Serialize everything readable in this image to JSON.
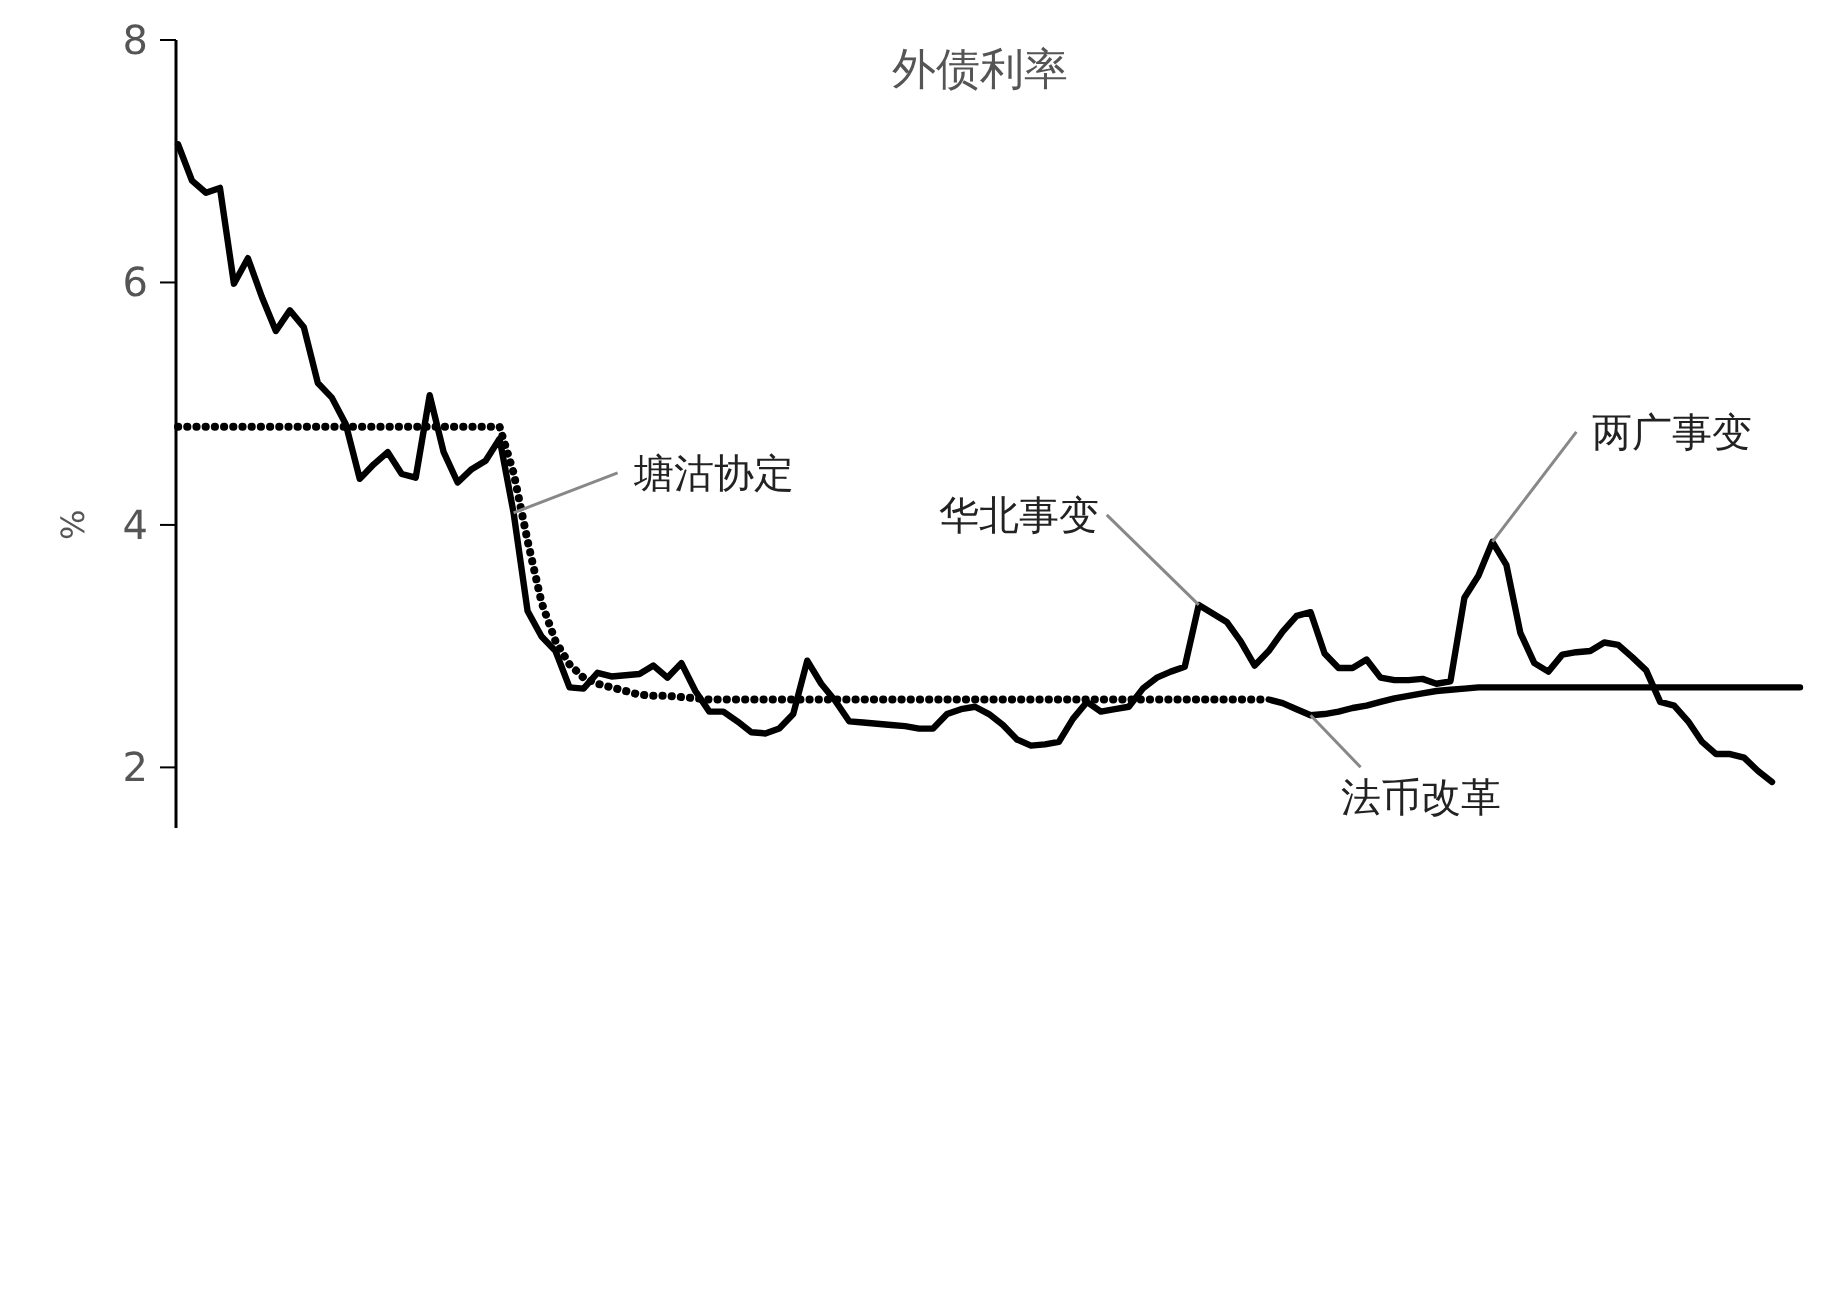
{
  "chart_data": {
    "type": "line",
    "title": "外债利率",
    "ylabel": "%",
    "categories": [
      null,
      null,
      null,
      null,
      null,
      null,
      null,
      null,
      null,
      null,
      null,
      null,
      null,
      null,
      null,
      null,
      null,
      null,
      null,
      null,
      null,
      null,
      null,
      null,
      null,
      null,
      null,
      null,
      null,
      null,
      null,
      null,
      null,
      null,
      null,
      null,
      null,
      null,
      null,
      null,
      null,
      null,
      null,
      null,
      null,
      null,
      null,
      null,
      null,
      null,
      null,
      null,
      null,
      null,
      null,
      null,
      null,
      null,
      null,
      null,
      null,
      null,
      null,
      null,
      null,
      null,
      null,
      null,
      null,
      null,
      null,
      null,
      null,
      null,
      null,
      null,
      null,
      null,
      null,
      null,
      null,
      null,
      null,
      null,
      null,
      null,
      null,
      null,
      null,
      null,
      null,
      null,
      null,
      null,
      null,
      null,
      null,
      null,
      null,
      null,
      null,
      null,
      null,
      null,
      null,
      null,
      null,
      null,
      null,
      null,
      null,
      null,
      null,
      null,
      null,
      null,
      null
    ],
    "ylim": [
      1.5,
      8
    ],
    "yticks": [
      2,
      4,
      6,
      8
    ],
    "tick_labels": "y",
    "grid": false,
    "series": [
      {
        "color": "#000000",
        "line_style": "solid",
        "values": [
          7.14,
          6.84,
          6.74,
          6.78,
          5.99,
          6.2,
          5.88,
          5.6,
          5.77,
          5.63,
          5.17,
          5.05,
          4.83,
          4.38,
          4.5,
          4.6,
          4.42,
          4.39,
          5.07,
          4.6,
          4.35,
          4.46,
          4.53,
          4.71,
          4.1,
          3.29,
          3.08,
          2.96,
          2.66,
          2.65,
          2.78,
          2.75,
          2.76,
          2.77,
          2.84,
          2.74,
          2.86,
          2.63,
          2.46,
          2.46,
          2.38,
          2.29,
          2.28,
          2.32,
          2.44,
          2.88,
          2.69,
          2.55,
          2.38,
          2.37,
          2.36,
          2.35,
          2.34,
          2.32,
          2.32,
          2.44,
          2.48,
          2.5,
          2.44,
          2.35,
          2.23,
          2.18,
          2.19,
          2.21,
          2.4,
          2.54,
          2.46,
          2.48,
          2.5,
          2.65,
          2.74,
          2.79,
          2.83,
          3.34,
          3.27,
          3.2,
          3.04,
          2.84,
          2.96,
          3.12,
          3.25,
          3.28,
          2.94,
          2.82,
          2.82,
          2.89,
          2.74,
          2.72,
          2.72,
          2.73,
          2.69,
          2.71,
          3.4,
          3.58,
          3.86,
          3.67,
          3.11,
          2.86,
          2.79,
          2.93,
          2.95,
          2.96,
          3.03,
          3.01,
          2.91,
          2.8,
          2.54,
          2.51,
          2.38,
          2.21,
          2.11,
          2.11,
          2.08,
          1.97,
          1.88,
          null,
          null
        ]
      },
      {
        "color": "#000000",
        "line_style": "dotted",
        "values": [
          4.81,
          4.81,
          4.81,
          4.81,
          4.81,
          4.81,
          4.81,
          4.81,
          4.81,
          4.81,
          4.81,
          4.81,
          4.81,
          4.81,
          4.81,
          4.81,
          4.81,
          4.81,
          4.81,
          4.81,
          4.81,
          4.81,
          4.81,
          4.81,
          4.43,
          3.87,
          3.36,
          3.04,
          2.85,
          2.74,
          2.69,
          2.66,
          2.63,
          2.6,
          2.59,
          2.59,
          2.58,
          2.57,
          2.56,
          2.56,
          2.56,
          2.56,
          2.56,
          2.56,
          2.56,
          2.56,
          2.56,
          2.56,
          2.56,
          2.56,
          2.56,
          2.56,
          2.56,
          2.56,
          2.56,
          2.56,
          2.56,
          2.56,
          2.56,
          2.56,
          2.56,
          2.56,
          2.56,
          2.56,
          2.56,
          2.56,
          2.56,
          2.56,
          2.56,
          2.56,
          2.56,
          2.56,
          2.56,
          2.56,
          2.56,
          2.56,
          2.56,
          2.56,
          2.56,
          null,
          null,
          null,
          null,
          null,
          null,
          null,
          null,
          null,
          null,
          null,
          null,
          null,
          null,
          null,
          null,
          null,
          null,
          null,
          null,
          null,
          null,
          null,
          null,
          null,
          null,
          null,
          null,
          null,
          null,
          null,
          null,
          null,
          null,
          null,
          null,
          null,
          null
        ]
      },
      {
        "color": "#000000",
        "line_style": "solid",
        "values": [
          null,
          null,
          null,
          null,
          null,
          null,
          null,
          null,
          null,
          null,
          null,
          null,
          null,
          null,
          null,
          null,
          null,
          null,
          null,
          null,
          null,
          null,
          null,
          null,
          null,
          null,
          null,
          null,
          null,
          null,
          null,
          null,
          null,
          null,
          null,
          null,
          null,
          null,
          null,
          null,
          null,
          null,
          null,
          null,
          null,
          null,
          null,
          null,
          null,
          null,
          null,
          null,
          null,
          null,
          null,
          null,
          null,
          null,
          null,
          null,
          null,
          null,
          null,
          null,
          null,
          null,
          null,
          null,
          null,
          null,
          null,
          null,
          null,
          null,
          null,
          null,
          null,
          null,
          2.56,
          2.53,
          2.48,
          2.43,
          2.44,
          2.46,
          2.49,
          2.51,
          2.54,
          2.57,
          2.59,
          2.61,
          2.63,
          2.64,
          2.65,
          2.66,
          2.66,
          2.66,
          2.66,
          2.66,
          2.66,
          2.66,
          2.66,
          2.66,
          2.66,
          2.66,
          2.66,
          2.66,
          2.66,
          2.66,
          2.66,
          2.66,
          2.66,
          2.66,
          2.66,
          2.66,
          2.66,
          2.66,
          2.66
        ]
      }
    ],
    "annotations": [
      "塘沽协定",
      "华北事变",
      "两广事变",
      "法币改革"
    ]
  }
}
